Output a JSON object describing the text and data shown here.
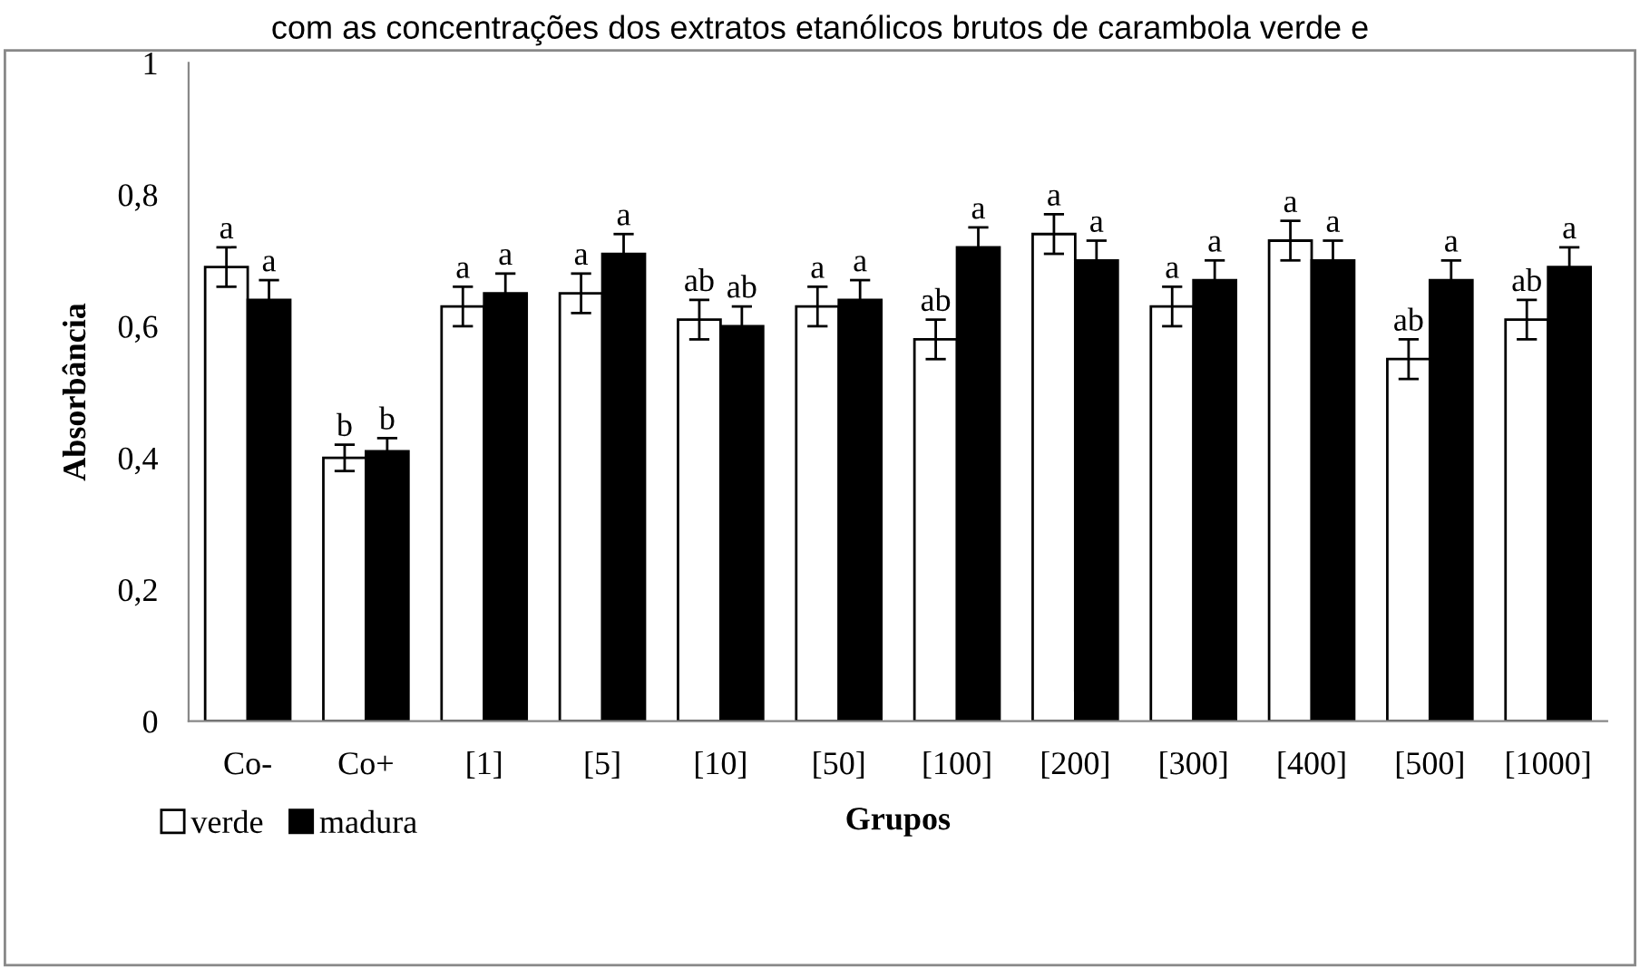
{
  "chart_data": {
    "type": "bar",
    "title": "com as concentrações dos extratos etanólicos brutos de carambola verde e",
    "xlabel": "Grupos",
    "ylabel": "Absorbância",
    "categories": [
      "Co-",
      "Co+",
      "[1]",
      "[5]",
      "[10]",
      "[50]",
      "[100]",
      "[200]",
      "[300]",
      "[400]",
      "[500]",
      "[1000]"
    ],
    "series": [
      {
        "name": "verde",
        "color": "#ffffff",
        "values": [
          0.69,
          0.4,
          0.63,
          0.65,
          0.61,
          0.63,
          0.58,
          0.74,
          0.63,
          0.73,
          0.55,
          0.61
        ],
        "errors": [
          0.03,
          0.02,
          0.03,
          0.03,
          0.03,
          0.03,
          0.03,
          0.03,
          0.03,
          0.03,
          0.03,
          0.03
        ]
      },
      {
        "name": "madura",
        "color": "#000000",
        "values": [
          0.64,
          0.41,
          0.65,
          0.71,
          0.6,
          0.64,
          0.72,
          0.7,
          0.67,
          0.7,
          0.67,
          0.69
        ],
        "errors": [
          0.03,
          0.02,
          0.03,
          0.03,
          0.03,
          0.03,
          0.03,
          0.03,
          0.03,
          0.03,
          0.03,
          0.03
        ]
      }
    ],
    "annotations": [
      {
        "text": "a",
        "x": "Co-",
        "y": 0.69
      },
      {
        "text": "a",
        "x": "Co-",
        "y": 0.64
      },
      {
        "text": "b",
        "x": "Co+",
        "y": 0.4
      },
      {
        "text": "b",
        "x": "Co+",
        "y": 0.41
      },
      {
        "text": "a",
        "x": "[1]",
        "y": 0.63
      },
      {
        "text": "a",
        "x": "[1]",
        "y": 0.65
      },
      {
        "text": "a",
        "x": "[5]",
        "y": 0.65
      },
      {
        "text": "a",
        "x": "[5]",
        "y": 0.71
      },
      {
        "text": "ab",
        "x": "[10]",
        "y": 0.61
      },
      {
        "text": "ab",
        "x": "[10]",
        "y": 0.6
      },
      {
        "text": "a",
        "x": "[50]",
        "y": 0.63
      },
      {
        "text": "a",
        "x": "[50]",
        "y": 0.64
      },
      {
        "text": "ab",
        "x": "[100]",
        "y": 0.58
      },
      {
        "text": "a",
        "x": "[100]",
        "y": 0.72
      },
      {
        "text": "a",
        "x": "[200]",
        "y": 0.74
      },
      {
        "text": "a",
        "x": "[200]",
        "y": 0.7
      },
      {
        "text": "a",
        "x": "[300]",
        "y": 0.63
      },
      {
        "text": "a",
        "x": "[300]",
        "y": 0.67
      },
      {
        "text": "a",
        "x": "[400]",
        "y": 0.73
      },
      {
        "text": "a",
        "x": "[400]",
        "y": 0.7
      },
      {
        "text": "ab",
        "x": "[500]",
        "y": 0.55
      },
      {
        "text": "a",
        "x": "[500]",
        "y": 0.67
      },
      {
        "text": "ab",
        "x": "[1000]",
        "y": 0.61
      },
      {
        "text": "a",
        "x": "[1000]",
        "y": 0.69
      }
    ],
    "ylim": [
      0,
      1
    ],
    "yticks": [
      {
        "value": 0,
        "label": "0"
      },
      {
        "value": 0.2,
        "label": "0,2"
      },
      {
        "value": 0.4,
        "label": "0,4"
      },
      {
        "value": 0.6,
        "label": "0,6"
      },
      {
        "value": 0.8,
        "label": "0,8"
      },
      {
        "value": 1,
        "label": "1"
      }
    ],
    "grid": false,
    "legend": "bottom left"
  }
}
